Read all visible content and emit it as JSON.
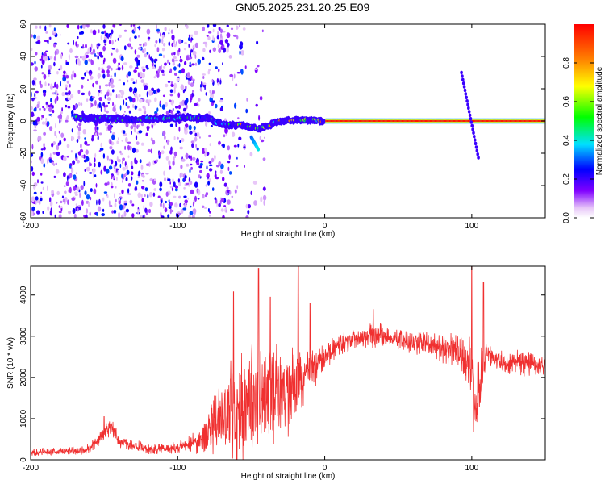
{
  "title": "GN05.2025.231.20.25.E09",
  "chart_data": [
    {
      "type": "heatmap",
      "xlabel": "Height of straight line (km)",
      "ylabel": "Frequency (Hz)",
      "xlim": [
        -200,
        150
      ],
      "ylim": [
        -60,
        60
      ],
      "x_ticks": [
        -200,
        -100,
        0,
        100
      ],
      "y_ticks": [
        -60,
        -40,
        -20,
        0,
        20,
        40,
        60
      ],
      "colorbar": {
        "label": "Normalized spectral amplitude",
        "range": [
          0,
          1
        ],
        "ticks": [
          "0.0",
          "0.2",
          "0.4",
          "0.6",
          "0.8"
        ],
        "tick_values": [
          0,
          0.2,
          0.4,
          0.6,
          0.8
        ]
      },
      "features": [
        {
          "name": "noise",
          "x_range": [
            -200,
            -40
          ],
          "freq_range": [
            -60,
            60
          ],
          "amplitude_range": [
            0.05,
            0.3
          ]
        },
        {
          "name": "trace",
          "points": [
            [
              -165,
              2
            ],
            [
              -130,
              1
            ],
            [
              -100,
              2
            ],
            [
              -80,
              2
            ],
            [
              -70,
              -2
            ],
            [
              -55,
              -3
            ],
            [
              -45,
              -5
            ],
            [
              -30,
              0
            ],
            [
              -15,
              1
            ],
            [
              0,
              0
            ],
            [
              150,
              0
            ]
          ],
          "amplitude_range": [
            0.2,
            1.0
          ]
        },
        {
          "name": "branch",
          "points": [
            [
              -50,
              -10
            ],
            [
              -45,
              -18
            ]
          ],
          "amplitude": 0.3
        },
        {
          "name": "streak",
          "points": [
            [
              93,
              30
            ],
            [
              105,
              -25
            ]
          ],
          "amplitude": 0.2
        }
      ]
    },
    {
      "type": "line",
      "xlabel": "Height of straight line (km)",
      "ylabel": "SNR (10 * v/v)",
      "xlim": [
        -200,
        150
      ],
      "ylim": [
        0,
        4700
      ],
      "x_ticks": [
        -200,
        -100,
        0,
        100
      ],
      "y_ticks": [
        0,
        1000,
        2000,
        3000,
        4000
      ],
      "color": "#f03030",
      "envelope": {
        "x": [
          -200,
          -180,
          -160,
          -150,
          -145,
          -140,
          -120,
          -100,
          -85,
          -75,
          -65,
          -55,
          -45,
          -35,
          -25,
          -15,
          -5,
          0,
          10,
          20,
          30,
          40,
          50,
          60,
          70,
          80,
          90,
          98,
          103,
          106,
          110,
          115,
          130,
          150
        ],
        "mean": [
          180,
          200,
          250,
          650,
          850,
          450,
          250,
          300,
          450,
          900,
          1100,
          1400,
          1500,
          1550,
          1700,
          2000,
          2300,
          2500,
          2800,
          2950,
          3050,
          3000,
          2900,
          2850,
          2800,
          2700,
          2600,
          2300,
          1300,
          1900,
          2600,
          2400,
          2350,
          2300
        ],
        "spread": [
          100,
          120,
          150,
          300,
          300,
          200,
          150,
          200,
          350,
          900,
          1500,
          1700,
          1500,
          1400,
          1200,
          800,
          500,
          400,
          350,
          350,
          350,
          350,
          350,
          350,
          350,
          400,
          500,
          1000,
          1200,
          1000,
          400,
          350,
          350,
          350
        ]
      },
      "spikes": [
        [
          -150,
          1050
        ],
        [
          -62,
          4080
        ],
        [
          -45,
          4650
        ],
        [
          -37,
          3950
        ],
        [
          -18,
          4700
        ],
        [
          -10,
          3800
        ],
        [
          33,
          3650
        ],
        [
          100,
          4700
        ],
        [
          108,
          4300
        ]
      ]
    }
  ]
}
